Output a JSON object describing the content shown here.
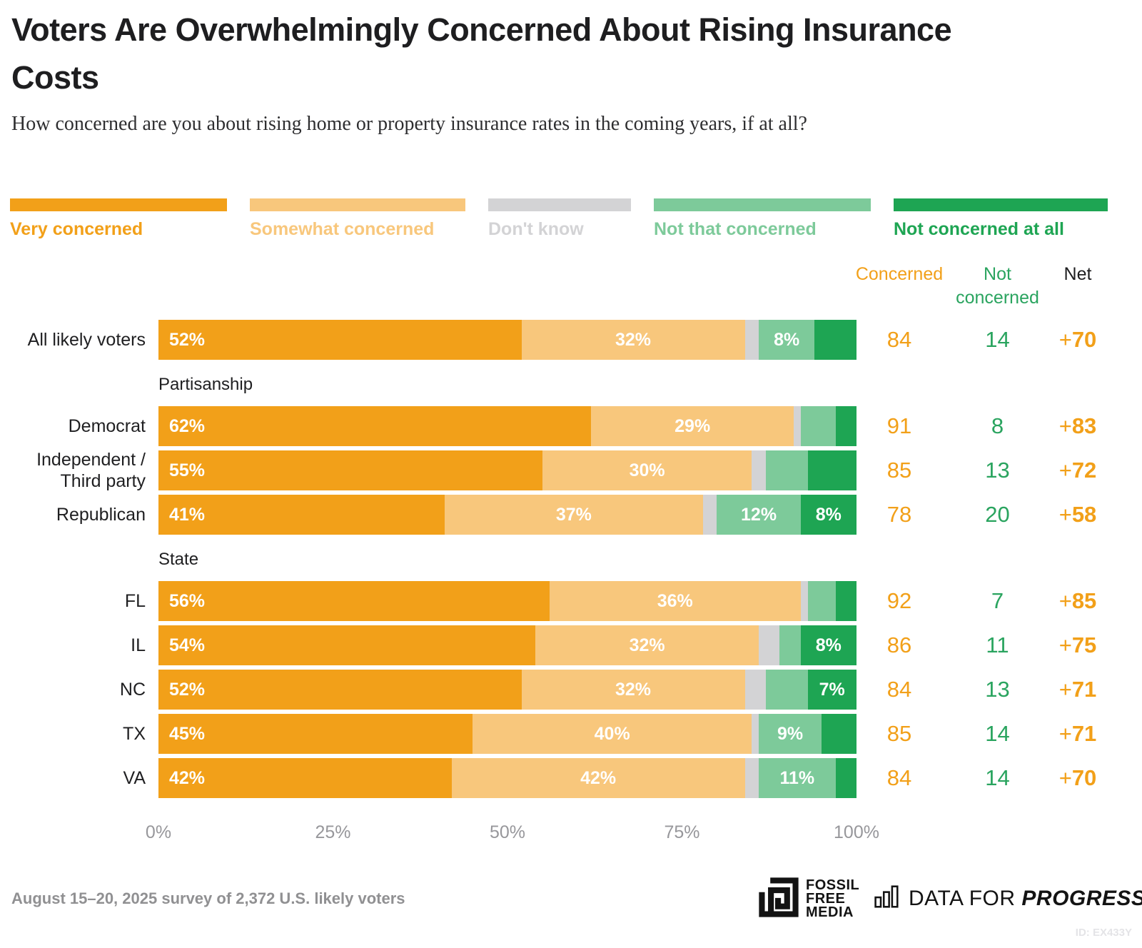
{
  "header": {
    "title": "Voters Are Overwhelmingly Concerned About Rising Insurance Costs",
    "subtitle": "How concerned are you about rising home or property insurance rates in the coming years, if at all?"
  },
  "chart_data": {
    "type": "bar",
    "stacked": true,
    "orientation": "horizontal",
    "x_axis": {
      "ticks": [
        "0%",
        "25%",
        "50%",
        "75%",
        "100%"
      ],
      "range": [
        0,
        100
      ]
    },
    "legend": [
      {
        "label": "Very concerned",
        "color": "#F2A019"
      },
      {
        "label": "Somewhat concerned",
        "color": "#F8C77C"
      },
      {
        "label": "Don't know",
        "color": "#D3D3D5"
      },
      {
        "label": "Not that concerned",
        "color": "#7DCA9A"
      },
      {
        "label": "Not concerned at all",
        "color": "#1EA553"
      }
    ],
    "stat_columns": [
      "Concerned",
      "Not concerned",
      "Net"
    ],
    "groups": [
      {
        "header": "",
        "rows": [
          {
            "label": "All likely voters",
            "segments": [
              52,
              32,
              2,
              8,
              6
            ],
            "segment_labels": [
              "52%",
              "32%",
              "",
              "8%",
              ""
            ],
            "concerned": 84,
            "not_concerned": 14,
            "net": "+70"
          }
        ]
      },
      {
        "header": "Partisanship",
        "rows": [
          {
            "label": "Democrat",
            "segments": [
              62,
              29,
              1,
              5,
              3
            ],
            "segment_labels": [
              "62%",
              "29%",
              "",
              "",
              ""
            ],
            "concerned": 91,
            "not_concerned": 8,
            "net": "+83"
          },
          {
            "label": "Independent / Third party",
            "segments": [
              55,
              30,
              2,
              6,
              7
            ],
            "segment_labels": [
              "55%",
              "30%",
              "",
              "",
              ""
            ],
            "concerned": 85,
            "not_concerned": 13,
            "net": "+72"
          },
          {
            "label": "Republican",
            "segments": [
              41,
              37,
              2,
              12,
              8
            ],
            "segment_labels": [
              "41%",
              "37%",
              "",
              "12%",
              "8%"
            ],
            "concerned": 78,
            "not_concerned": 20,
            "net": "+58"
          }
        ]
      },
      {
        "header": "State",
        "rows": [
          {
            "label": "FL",
            "segments": [
              56,
              36,
              1,
              4,
              3
            ],
            "segment_labels": [
              "56%",
              "36%",
              "",
              "",
              ""
            ],
            "concerned": 92,
            "not_concerned": 7,
            "net": "+85"
          },
          {
            "label": "IL",
            "segments": [
              54,
              32,
              3,
              3,
              8
            ],
            "segment_labels": [
              "54%",
              "32%",
              "",
              "",
              "8%"
            ],
            "concerned": 86,
            "not_concerned": 11,
            "net": "+75"
          },
          {
            "label": "NC",
            "segments": [
              52,
              32,
              3,
              6,
              7
            ],
            "segment_labels": [
              "52%",
              "32%",
              "",
              "",
              "7%"
            ],
            "concerned": 84,
            "not_concerned": 13,
            "net": "+71"
          },
          {
            "label": "TX",
            "segments": [
              45,
              40,
              1,
              9,
              5
            ],
            "segment_labels": [
              "45%",
              "40%",
              "",
              "9%",
              ""
            ],
            "concerned": 85,
            "not_concerned": 14,
            "net": "+71"
          },
          {
            "label": "VA",
            "segments": [
              42,
              42,
              2,
              11,
              3
            ],
            "segment_labels": [
              "42%",
              "42%",
              "",
              "11%",
              ""
            ],
            "concerned": 84,
            "not_concerned": 14,
            "net": "+70"
          }
        ]
      }
    ]
  },
  "footer": {
    "note": "August 15–20, 2025 survey of 2,372 U.S. likely voters",
    "ffm_logo_lines": [
      "FOSSIL",
      "FREE",
      "MEDIA"
    ],
    "dfp_logo_thin": "DATA FOR ",
    "dfp_logo_bold": "PROGRESS",
    "id_text": "ID: EX433Y"
  }
}
